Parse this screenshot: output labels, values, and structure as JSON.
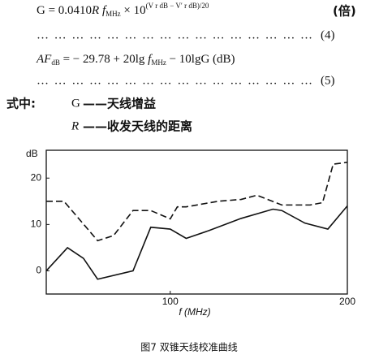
{
  "formulas": [
    {
      "parts": [
        "G = 0.0410",
        "R",
        " f",
        "MHz",
        " × 10",
        "(V r dB − V′ r dB)/20"
      ],
      "tag": "(倍)"
    },
    {
      "leader": "…………………………………………",
      "tag": "(4)"
    },
    {
      "parts": [
        "AF",
        "dB",
        " = − 29.78 + 20lg",
        " f",
        "MHz",
        " − 10lgG (dB)"
      ]
    },
    {
      "leader": "…………………………………………",
      "tag": "(5)"
    }
  ],
  "definitions": {
    "lead": "式中:",
    "items": [
      {
        "symbol": "G",
        "text": "——天线增益"
      },
      {
        "symbol": "R",
        "text": "——收发天线的距离"
      }
    ]
  },
  "chart_data": {
    "type": "line",
    "y_unit": "dB",
    "xlabel": "f (MHz)",
    "xlim": [
      30,
      200
    ],
    "ylim": [
      -5,
      26
    ],
    "xticks": [
      100,
      200
    ],
    "yticks": [
      0,
      10,
      20
    ],
    "series": [
      {
        "color": "#111",
        "dashed": false,
        "x": [
          30,
          42,
          51,
          59,
          79,
          89,
          100,
          109,
          122,
          140,
          158,
          163,
          176,
          189,
          200
        ],
        "values": [
          0,
          5,
          2.7,
          -1.8,
          0,
          9.4,
          9,
          7,
          8.7,
          11.3,
          13.3,
          13,
          10.3,
          9,
          14
        ]
      },
      {
        "color": "#111",
        "dashed": true,
        "x": [
          30,
          40,
          59,
          68,
          79,
          89,
          100,
          104,
          109,
          127,
          140,
          149,
          163,
          179,
          186,
          192,
          200
        ],
        "values": [
          15,
          15,
          6.5,
          7.6,
          13,
          13,
          11.2,
          13.8,
          13.8,
          15,
          15.4,
          16.3,
          14.2,
          14.2,
          14.7,
          23,
          23.4
        ]
      }
    ]
  },
  "caption": "图7   双锥天线校准曲线"
}
